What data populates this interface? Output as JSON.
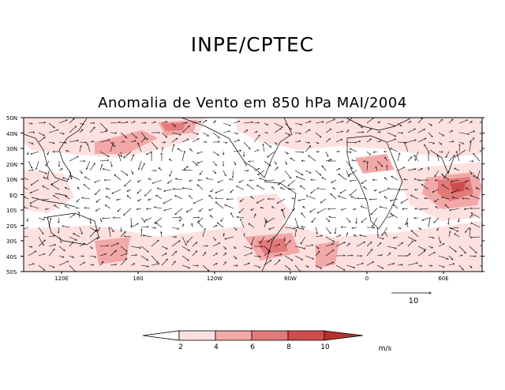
{
  "header": {
    "title": "INPE/CPTEC"
  },
  "map": {
    "title": "Anomalia de Vento em 850 hPa MAI/2004",
    "lat_labels": [
      "50N",
      "40N",
      "30N",
      "20N",
      "10N",
      "EQ",
      "10S",
      "20S",
      "30S",
      "40S",
      "50S"
    ],
    "lon_labels": [
      "120E",
      "180",
      "120W",
      "60W",
      "0",
      "60E"
    ],
    "reference_vector": {
      "label": "10",
      "value": 10
    }
  },
  "colorbar": {
    "unit": "m/s",
    "levels": [
      "2",
      "4",
      "6",
      "8",
      "10"
    ],
    "colors": [
      "#ffffff",
      "#fde0e0",
      "#f3a8a8",
      "#e37a7a",
      "#cf4d4d",
      "#b83030"
    ]
  }
}
